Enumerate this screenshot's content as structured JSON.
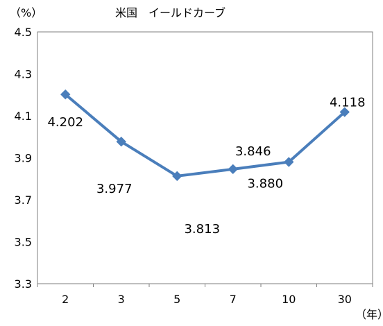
{
  "chart_data": {
    "type": "line",
    "title": "米国　イールドカーブ",
    "y_unit": "（%）",
    "x_unit": "（年）",
    "categories": [
      "2",
      "3",
      "5",
      "7",
      "10",
      "30"
    ],
    "series": [
      {
        "values": [
          4.202,
          3.977,
          3.813,
          3.846,
          3.88,
          4.118
        ],
        "labels": [
          "4.202",
          "3.977",
          "3.813",
          "3.846",
          "3.880",
          "4.118"
        ],
        "color": "#4a7ebb"
      }
    ],
    "ylim": [
      3.3,
      4.5
    ],
    "yticks": [
      "4.5",
      "4.3",
      "4.1",
      "3.9",
      "3.7",
      "3.5",
      "3.3"
    ],
    "grid": false,
    "legend": "none"
  }
}
